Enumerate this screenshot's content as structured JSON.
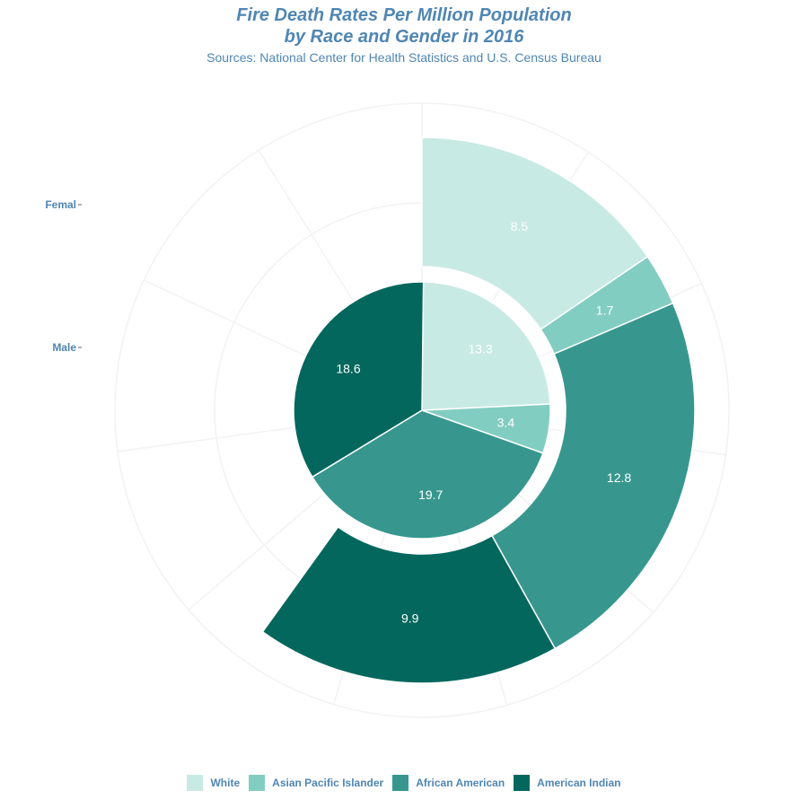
{
  "header": {
    "title_line1": "Fire Death Rates Per Million Population",
    "title_line2": "by Race and Gender in 2016",
    "subtitle": "Sources: National Center for Health Statistics and U.S. Census Bureau"
  },
  "colors": {
    "White": "#c8eae4",
    "Asian Pacific Islander": "#82cdc1",
    "African American": "#37978f",
    "American Indian": "#03675d",
    "text": "#4f86b3",
    "grid": "#f2f2f2"
  },
  "chart_data": {
    "type": "pie",
    "layout": "concentric rings (polar stacked bar)",
    "categories": [
      "White",
      "Asian Pacific Islander",
      "African American",
      "American Indian"
    ],
    "series": [
      {
        "name": "Male",
        "values": [
          13.3,
          3.4,
          19.7,
          18.6
        ]
      },
      {
        "name": "Femal",
        "values": [
          8.5,
          1.7,
          12.8,
          9.9
        ]
      }
    ],
    "angle_max": 54.9,
    "ring_tick_labels": [
      "Femal",
      "Male"
    ],
    "legend_position": "bottom",
    "legend": [
      "White",
      "Asian Pacific Islander",
      "African American",
      "American Indian"
    ],
    "grid": true
  },
  "legend": {
    "items": [
      {
        "label": "White"
      },
      {
        "label": "Asian Pacific Islander"
      },
      {
        "label": "African American"
      },
      {
        "label": "American Indian"
      }
    ]
  }
}
